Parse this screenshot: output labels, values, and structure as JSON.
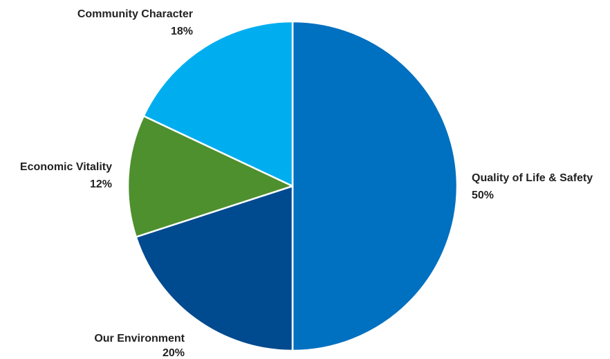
{
  "chart_data": {
    "type": "pie",
    "title": "",
    "slices": [
      {
        "label": "Quality of Life & Safety",
        "value": 50,
        "display": "50%",
        "color": "#0070C0"
      },
      {
        "label": "Our Environment",
        "value": 20,
        "display": "20%",
        "color": "#004A8F"
      },
      {
        "label": "Economic Vitality",
        "value": 12,
        "display": "12%",
        "color": "#4E8F2E"
      },
      {
        "label": "Community Character",
        "value": 18,
        "display": "18%",
        "color": "#00AEEF"
      }
    ],
    "start_angle": "top",
    "direction": "clockwise",
    "legend": "none",
    "slice_border_color": "#ffffff"
  }
}
